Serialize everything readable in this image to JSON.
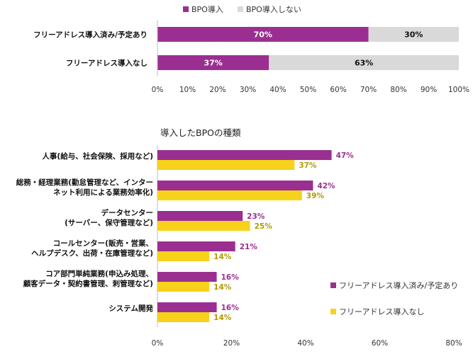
{
  "colors": {
    "purple": "#9b2f91",
    "gray": "#d9d9d9",
    "yellow": "#f7d21a",
    "grid": "#bfbfbf"
  },
  "chart_data": [
    {
      "type": "bar",
      "orientation": "horizontal",
      "stacked": true,
      "percent": true,
      "categories": [
        "フリーアドレス導入済み/予定あり",
        "フリーアドレス導入なし"
      ],
      "series": [
        {
          "name": "BPO導入",
          "values": [
            70,
            37
          ],
          "color": "#9b2f91"
        },
        {
          "name": "BPO導入しない",
          "values": [
            30,
            63
          ],
          "color": "#d9d9d9"
        }
      ],
      "xlim": [
        0,
        100
      ],
      "xticks": [
        "0%",
        "10%",
        "20%",
        "30%",
        "40%",
        "50%",
        "60%",
        "70%",
        "80%",
        "90%",
        "100%"
      ],
      "legend_position": "top"
    },
    {
      "type": "bar",
      "orientation": "horizontal",
      "title": "導入したBPOの種類",
      "categories": [
        [
          "人事(給与、社会保険、採用など)"
        ],
        [
          "総務・経理業務(勤怠管理など、インター",
          "ネット利用による業務効率化)"
        ],
        [
          "データセンター",
          "(サーバー、保守管理など)"
        ],
        [
          "コールセンター(販売・営業、",
          "ヘルプデスク、出荷・在庫管理など)"
        ],
        [
          "コア部門単純業務(申込み処理、",
          "顧客データ・契約書管理、刺管理など)"
        ],
        [
          "システム開発"
        ]
      ],
      "series": [
        {
          "name": "フリーアドレス導入済み/予定あり",
          "values": [
            47,
            42,
            23,
            21,
            16,
            16
          ],
          "color": "#9b2f91"
        },
        {
          "name": "フリーアドレス導入なし",
          "values": [
            37,
            39,
            25,
            14,
            14,
            14
          ],
          "color": "#f7d21a"
        }
      ],
      "xlim": [
        0,
        80
      ],
      "xticks": [
        "0%",
        "20%",
        "40%",
        "60%",
        "80%"
      ],
      "legend_position": "right"
    }
  ]
}
